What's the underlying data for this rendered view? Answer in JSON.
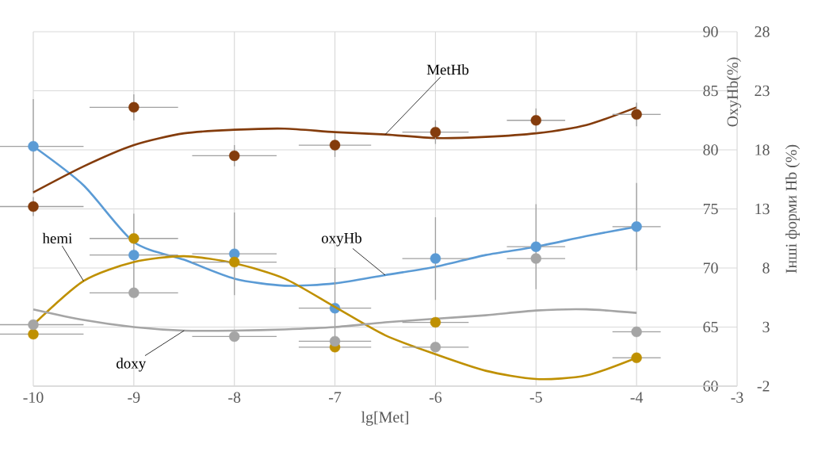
{
  "chart_data": {
    "type": "scatter",
    "xlabel": "lg[Met]",
    "ylabel": "OxyHb(%)",
    "y2label": "Інші форми Hb (%)",
    "x": [
      -10,
      -9,
      -8,
      -7,
      -6,
      -5,
      -4
    ],
    "xlim": [
      -10,
      -3
    ],
    "xticks": [
      -10,
      -9,
      -8,
      -7,
      -6,
      -5,
      -4,
      -3
    ],
    "ylim": [
      60,
      90
    ],
    "yticks": [
      60,
      65,
      70,
      75,
      80,
      85,
      90
    ],
    "y2lim": [
      -2,
      28
    ],
    "y2ticks": [
      -2,
      3,
      8,
      13,
      18,
      23,
      28
    ],
    "grid": true,
    "series": [
      {
        "type": "line",
        "name": "MetHb",
        "axis": "y2",
        "color": "#843c0c",
        "marker": "none",
        "line_style": "solid",
        "x": [
          -10,
          -9.5,
          -9,
          -8.5,
          -8,
          -7.5,
          -7,
          -6.5,
          -6,
          -5.5,
          -5,
          -4.5,
          -4
        ],
        "values": [
          14.4,
          16.6,
          18.4,
          19.4,
          19.7,
          19.8,
          19.5,
          19.3,
          19.0,
          19.1,
          19.4,
          20.1,
          21.6
        ]
      },
      {
        "type": "line",
        "name": "oxyHb",
        "axis": "y",
        "color": "#5b9bd5",
        "marker": "none",
        "line_style": "solid",
        "x": [
          -10,
          -9.5,
          -9,
          -8.5,
          -8,
          -7.5,
          -7,
          -6.5,
          -6,
          -5.5,
          -5,
          -4.5,
          -4
        ],
        "values": [
          80.3,
          77.0,
          72.2,
          70.7,
          69.1,
          68.5,
          68.7,
          69.4,
          70.1,
          71.1,
          71.8,
          72.7,
          73.5
        ]
      },
      {
        "type": "line",
        "name": "hemi",
        "axis": "y2",
        "color": "#bf9000",
        "marker": "none",
        "line_style": "solid",
        "x": [
          -10,
          -9.5,
          -9,
          -8.5,
          -8,
          -7.5,
          -7,
          -6.5,
          -6,
          -5.5,
          -5,
          -4.5,
          -4
        ],
        "values": [
          3.2,
          6.9,
          8.5,
          9.0,
          8.4,
          7.1,
          4.7,
          2.3,
          0.7,
          -0.7,
          -1.4,
          -1.1,
          0.4
        ]
      },
      {
        "type": "line",
        "name": "doxy",
        "axis": "y2",
        "color": "#a5a5a5",
        "marker": "none",
        "line_style": "solid",
        "x": [
          -10,
          -9.5,
          -9,
          -8.5,
          -8,
          -7.5,
          -7,
          -6.5,
          -6,
          -5.5,
          -5,
          -4.5,
          -4
        ],
        "values": [
          4.5,
          3.6,
          3.0,
          2.7,
          2.7,
          2.8,
          3.0,
          3.4,
          3.7,
          4.0,
          4.4,
          4.5,
          4.2
        ]
      },
      {
        "axis": "y",
        "color": "#5b9bd5",
        "marker": "circle",
        "values": [
          80.3,
          71.1,
          71.2,
          66.6,
          70.8,
          71.8,
          73.5
        ],
        "errors": [
          4.0,
          3.5,
          3.5,
          3.4,
          3.5,
          3.6,
          3.7
        ],
        "xerrors": [
          0.5,
          0.44,
          0.42,
          0.36,
          0.33,
          0.29,
          0.24
        ]
      },
      {
        "axis": "y2",
        "color": "#843c0c",
        "marker": "circle",
        "values": [
          13.2,
          21.6,
          17.5,
          18.4,
          19.5,
          20.5,
          21.0
        ],
        "errors": [
          0.8,
          1.1,
          0.9,
          1.0,
          1.0,
          1.0,
          1.0
        ],
        "xerrors": [
          0.5,
          0.44,
          0.42,
          0.36,
          0.33,
          0.29,
          0.24
        ]
      },
      {
        "axis": "y2",
        "color": "#bf9000",
        "marker": "circle",
        "values": [
          2.4,
          10.5,
          8.5,
          1.3,
          3.4,
          null,
          0.4
        ],
        "xerrors": [
          0.5,
          0.44,
          0.42,
          0.36,
          0.33,
          null,
          0.24
        ]
      },
      {
        "axis": "y2",
        "color": "#a5a5a5",
        "marker": "circle",
        "values": [
          3.2,
          5.9,
          2.2,
          1.8,
          1.3,
          8.8,
          2.6
        ],
        "xerrors": [
          0.5,
          0.44,
          0.42,
          0.36,
          0.33,
          0.29,
          0.24
        ]
      }
    ]
  }
}
